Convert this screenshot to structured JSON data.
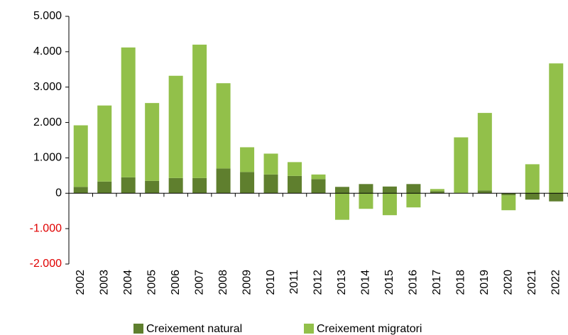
{
  "chart_data": {
    "type": "stacked_bar",
    "categories": [
      "2002",
      "2003",
      "2004",
      "2005",
      "2006",
      "2007",
      "2008",
      "2009",
      "2010",
      "2011",
      "2012",
      "2013",
      "2014",
      "2015",
      "2016",
      "2017",
      "2018",
      "2019",
      "2020",
      "2021",
      "2022"
    ],
    "series": [
      {
        "name": "Creixement natural",
        "color": "#5f7f2e",
        "values": [
          180,
          330,
          450,
          350,
          430,
          430,
          700,
          600,
          530,
          490,
          400,
          180,
          260,
          190,
          260,
          60,
          10,
          80,
          -60,
          -180,
          -230
        ]
      },
      {
        "name": "Creixement migratori",
        "color": "#92c04a",
        "values": [
          1740,
          2150,
          3670,
          2200,
          2890,
          3770,
          2410,
          700,
          590,
          390,
          130,
          -750,
          -440,
          -620,
          -400,
          60,
          1570,
          2190,
          -420,
          820,
          3670
        ]
      }
    ],
    "ylim": [
      -2000,
      5000
    ],
    "yticks": [
      {
        "value": -2000,
        "label": "-2.000"
      },
      {
        "value": -1000,
        "label": "-1.000"
      },
      0,
      {
        "value": 1000,
        "label": "1.000"
      },
      {
        "value": 2000,
        "label": "2.000"
      },
      {
        "value": 3000,
        "label": "3.000"
      },
      {
        "value": 4000,
        "label": "4.000"
      },
      {
        "value": 5000,
        "label": "5.000"
      }
    ],
    "negative_tick_color": "#e00000",
    "legend": "bottom"
  }
}
